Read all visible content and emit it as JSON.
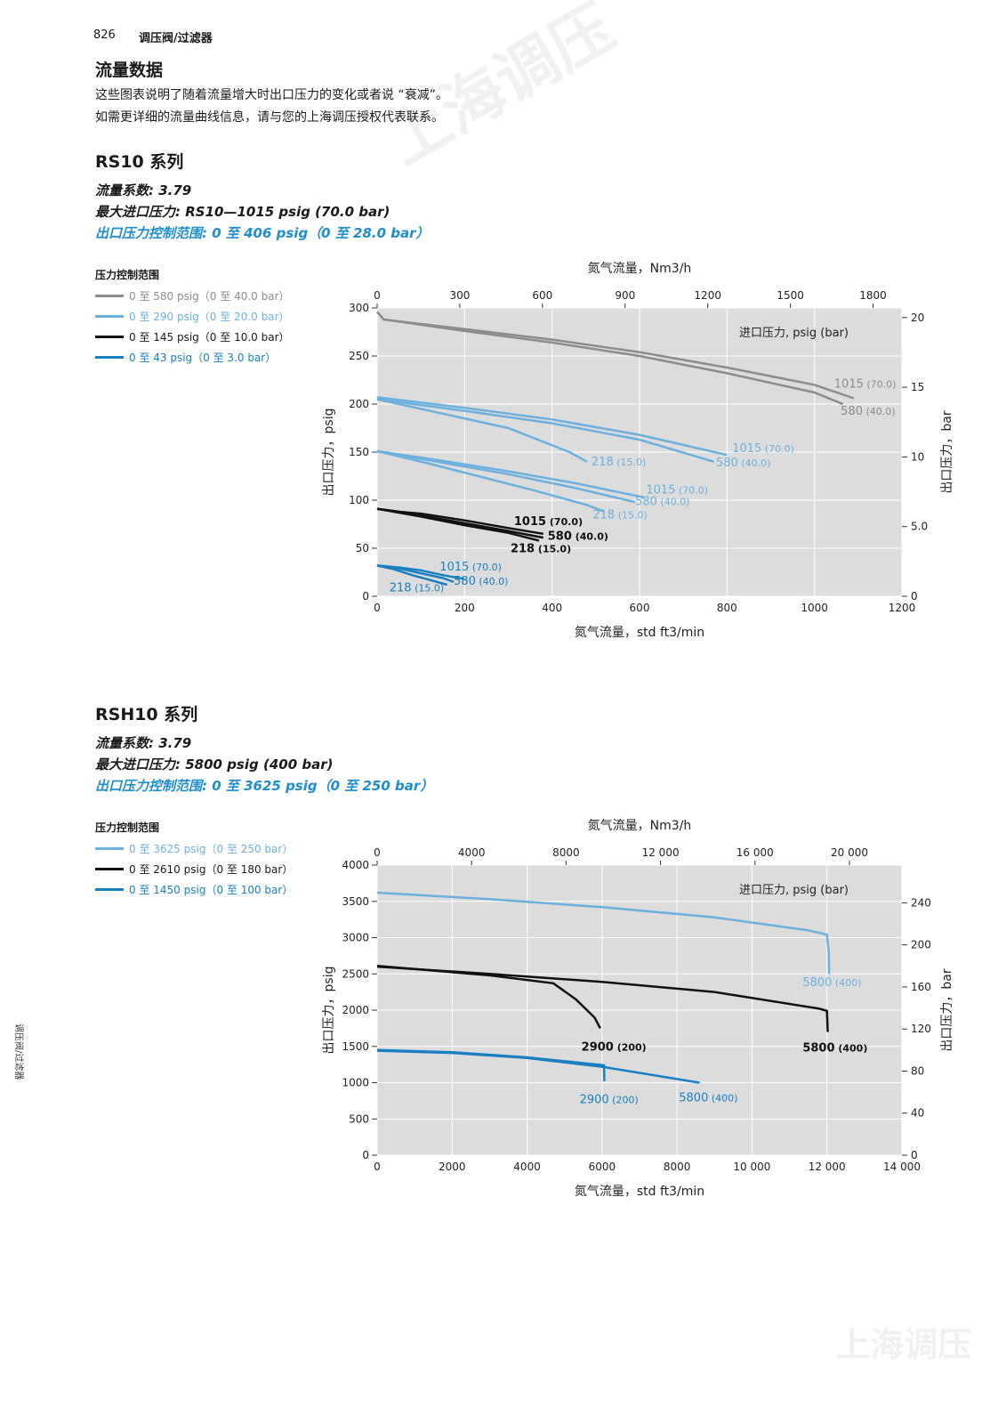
{
  "header": {
    "page_number": "826",
    "section": "调压阀/过滤器"
  },
  "intro": {
    "title": "流量数据",
    "line1": "这些图表说明了随着流量增大时出口压力的变化或者说 “衰减”。",
    "line2": "如需更详细的流量曲线信息，请与您的上海调压授权代表联系。"
  },
  "sidebar_text": "调压阀/过滤器",
  "watermark": "上海调压",
  "colors": {
    "gray": "#8c8c8c",
    "light_blue": "#6db0de",
    "black": "#111111",
    "blue": "#1a7fc1"
  },
  "rs10": {
    "title": "RS10 系列",
    "flow_coeff": "流量系数: 3.79",
    "max_inlet": "最大进口压力: RS10—1015 psig (70.0 bar)",
    "outlet_range": "出口压力控制范围: 0 至 406 psig（0 至 28.0 bar）",
    "legend_title": "压力控制范围",
    "legend": [
      {
        "label": "0 至 580 psig（0 至 40.0 bar）",
        "color": "#8c8c8c"
      },
      {
        "label": "0 至 290 psig（0 至 20.0 bar）",
        "color": "#6db0de"
      },
      {
        "label": "0 至 145 psig（0 至 10.0 bar）",
        "color": "#111111"
      },
      {
        "label": "0 至 43 psig（0 至 3.0 bar）",
        "color": "#1a7fc1"
      }
    ]
  },
  "rsh10": {
    "title": "RSH10 系列",
    "flow_coeff": "流量系数: 3.79",
    "max_inlet": "最大进口压力: 5800 psig (400 bar)",
    "outlet_range": "出口压力控制范围: 0 至 3625 psig（0 至 250 bar）",
    "legend_title": "压力控制范围",
    "legend": [
      {
        "label": "0 至 3625 psig（0 至 250 bar）",
        "color": "#6db0de"
      },
      {
        "label": "0 至 2610 psig（0 至 180 bar）",
        "color": "#111111"
      },
      {
        "label": "0 至 1450 psig（0 至 100 bar）",
        "color": "#1a7fc1"
      }
    ]
  },
  "chart_data": [
    {
      "type": "line",
      "title": "",
      "xlabel": "氮气流量，std ft3/min",
      "x2label": "氮气流量，Nm3/h",
      "ylabel": "出口压力，psig",
      "y2label": "出口压力，bar",
      "inlet_label": "进口压力, psig (bar)",
      "xlim": [
        0,
        1200
      ],
      "ylim": [
        0,
        300
      ],
      "x_ticks": [
        "0",
        "200",
        "400",
        "600",
        "800",
        "1000",
        "1200"
      ],
      "y_ticks": [
        "0",
        "50",
        "100",
        "150",
        "200",
        "250",
        "300"
      ],
      "x2_ticks": [
        {
          "label": "0",
          "x": 0
        },
        {
          "label": "300",
          "x": 189
        },
        {
          "label": "600",
          "x": 378
        },
        {
          "label": "900",
          "x": 567
        },
        {
          "label": "1200",
          "x": 756
        },
        {
          "label": "1500",
          "x": 945
        },
        {
          "label": "1800",
          "x": 1134
        }
      ],
      "y2_ticks": [
        {
          "label": "0",
          "y": 0
        },
        {
          "label": "5.0",
          "y": 72.5
        },
        {
          "label": "10",
          "y": 145
        },
        {
          "label": "15",
          "y": 217.5
        },
        {
          "label": "20",
          "y": 290
        }
      ],
      "grid": true,
      "series": [
        {
          "color": "#8c8c8c",
          "points": [
            [
              0,
              296
            ],
            [
              15,
              288
            ],
            [
              200,
              278
            ],
            [
              400,
              267
            ],
            [
              600,
              254
            ],
            [
              800,
              238
            ],
            [
              1000,
              220
            ],
            [
              1090,
              206
            ]
          ],
          "label": "1015",
          "label_sub": "(70.0)",
          "lx": 1045,
          "ly": 217
        },
        {
          "color": "#8c8c8c",
          "points": [
            [
              0,
              296
            ],
            [
              15,
              288
            ],
            [
              200,
              276
            ],
            [
              400,
              264
            ],
            [
              600,
              250
            ],
            [
              800,
              232
            ],
            [
              1000,
              212
            ],
            [
              1065,
              200
            ]
          ],
          "label": "580",
          "label_sub": "(40.0)",
          "lx": 1060,
          "ly": 189
        },
        {
          "color": "#6db0de",
          "points": [
            [
              0,
              207
            ],
            [
              200,
              196
            ],
            [
              400,
              184
            ],
            [
              600,
              168
            ],
            [
              800,
              147
            ]
          ],
          "label": "1015",
          "label_sub": "(70.0)",
          "lx": 812,
          "ly": 150
        },
        {
          "color": "#6db0de",
          "points": [
            [
              0,
              205
            ],
            [
              200,
              193
            ],
            [
              400,
              180
            ],
            [
              600,
              163
            ],
            [
              770,
              140
            ]
          ],
          "label": "580",
          "label_sub": "(40.0)",
          "lx": 775,
          "ly": 135
        },
        {
          "color": "#6db0de",
          "points": [
            [
              0,
              205
            ],
            [
              150,
              190
            ],
            [
              300,
              175
            ],
            [
              440,
              150
            ],
            [
              480,
              140
            ]
          ],
          "label": "218",
          "label_sub": "(15.0)",
          "lx": 490,
          "ly": 136
        },
        {
          "color": "#6db0de",
          "points": [
            [
              0,
              151
            ],
            [
              150,
              141
            ],
            [
              300,
              130
            ],
            [
              450,
              118
            ],
            [
              610,
              103
            ]
          ],
          "label": "1015",
          "label_sub": "(70.0)",
          "lx": 615,
          "ly": 107
        },
        {
          "color": "#6db0de",
          "points": [
            [
              0,
              151
            ],
            [
              150,
              139
            ],
            [
              300,
              127
            ],
            [
              450,
              113
            ],
            [
              590,
              98
            ]
          ],
          "label": "580",
          "label_sub": "(40.0)",
          "lx": 590,
          "ly": 95
        },
        {
          "color": "#6db0de",
          "points": [
            [
              0,
              151
            ],
            [
              120,
              138
            ],
            [
              240,
              124
            ],
            [
              360,
              110
            ],
            [
              480,
              95
            ],
            [
              520,
              88
            ]
          ],
          "label": "218",
          "label_sub": "(15.0)",
          "lx": 493,
          "ly": 81
        },
        {
          "color": "#111111",
          "points": [
            [
              0,
              91
            ],
            [
              50,
              88
            ],
            [
              100,
              86
            ],
            [
              200,
              79
            ],
            [
              300,
              71
            ],
            [
              380,
              65
            ]
          ],
          "label": "1015",
          "label_sub": "(70.0)",
          "lx": 313,
          "ly": 74
        },
        {
          "color": "#111111",
          "points": [
            [
              0,
              91
            ],
            [
              50,
              88
            ],
            [
              100,
              84
            ],
            [
              200,
              76
            ],
            [
              300,
              68
            ],
            [
              380,
              61
            ]
          ],
          "label": "580",
          "label_sub": "(40.0)",
          "lx": 390,
          "ly": 59
        },
        {
          "color": "#111111",
          "points": [
            [
              0,
              91
            ],
            [
              50,
              87
            ],
            [
              100,
              83
            ],
            [
              200,
              74
            ],
            [
              300,
              66
            ],
            [
              370,
              58
            ]
          ],
          "label": "218",
          "label_sub": "(15.0)",
          "lx": 305,
          "ly": 46
        },
        {
          "color": "#1a7fc1",
          "points": [
            [
              0,
              32
            ],
            [
              50,
              30
            ],
            [
              100,
              27
            ],
            [
              150,
              22
            ],
            [
              200,
              18
            ]
          ],
          "label": "1015",
          "label_sub": "(70.0)",
          "lx": 143,
          "ly": 27
        },
        {
          "color": "#1a7fc1",
          "points": [
            [
              0,
              32
            ],
            [
              50,
              29
            ],
            [
              100,
              24
            ],
            [
              150,
              19
            ],
            [
              175,
              15
            ]
          ],
          "label": "580",
          "label_sub": "(40.0)",
          "lx": 175,
          "ly": 12
        },
        {
          "color": "#1a7fc1",
          "points": [
            [
              0,
              32
            ],
            [
              40,
              28
            ],
            [
              80,
              22
            ],
            [
              120,
              17
            ],
            [
              160,
              12
            ]
          ],
          "label": "218",
          "label_sub": "(15.0)",
          "lx": 28,
          "ly": 5
        }
      ]
    },
    {
      "type": "line",
      "title": "",
      "xlabel": "氮气流量，std ft3/min",
      "x2label": "氮气流量，Nm3/h",
      "ylabel": "出口压力，psig",
      "y2label": "出口压力，bar",
      "inlet_label": "进口压力, psig (bar)",
      "xlim": [
        0,
        14000
      ],
      "ylim": [
        0,
        4000
      ],
      "x_ticks": [
        "0",
        "2000",
        "4000",
        "6000",
        "8000",
        "10 000",
        "12 000",
        "14 000"
      ],
      "y_ticks": [
        "0",
        "500",
        "1000",
        "1500",
        "2000",
        "2500",
        "3000",
        "3500",
        "4000"
      ],
      "x2_ticks": [
        {
          "label": "0",
          "x": 0
        },
        {
          "label": "4000",
          "x": 2520
        },
        {
          "label": "8000",
          "x": 5040
        },
        {
          "label": "12 000",
          "x": 7560
        },
        {
          "label": "16 000",
          "x": 10080
        },
        {
          "label": "20 000",
          "x": 12600
        }
      ],
      "y2_ticks": [
        {
          "label": "0",
          "y": 0
        },
        {
          "label": "40",
          "y": 580
        },
        {
          "label": "80",
          "y": 1160
        },
        {
          "label": "120",
          "y": 1740
        },
        {
          "label": "160",
          "y": 2320
        },
        {
          "label": "200",
          "y": 2900
        },
        {
          "label": "240",
          "y": 3480
        }
      ],
      "grid": true,
      "series": [
        {
          "color": "#6db0de",
          "points": [
            [
              0,
              3620
            ],
            [
              3000,
              3530
            ],
            [
              6000,
              3420
            ],
            [
              9000,
              3280
            ],
            [
              11500,
              3100
            ],
            [
              12000,
              3040
            ],
            [
              12050,
              2800
            ],
            [
              12060,
              2500
            ]
          ],
          "label": "5800",
          "label_sub": "(400)",
          "lx": 11350,
          "ly": 2330
        },
        {
          "color": "#111111",
          "points": [
            [
              0,
              2610
            ],
            [
              3000,
              2480
            ],
            [
              4700,
              2370
            ],
            [
              5300,
              2150
            ],
            [
              5800,
              1900
            ],
            [
              5950,
              1750
            ]
          ],
          "label": "2900",
          "label_sub": "(200)",
          "lx": 5450,
          "ly": 1440
        },
        {
          "color": "#111111",
          "points": [
            [
              0,
              2600
            ],
            [
              3000,
              2500
            ],
            [
              6000,
              2390
            ],
            [
              9000,
              2250
            ],
            [
              11800,
              2020
            ],
            [
              12000,
              1990
            ],
            [
              12020,
              1700
            ]
          ],
          "label": "5800",
          "label_sub": "(400)",
          "lx": 11350,
          "ly": 1430
        },
        {
          "color": "#1a7fc1",
          "points": [
            [
              0,
              1450
            ],
            [
              2000,
              1420
            ],
            [
              4000,
              1350
            ],
            [
              5500,
              1270
            ],
            [
              6050,
              1240
            ],
            [
              6060,
              1020
            ]
          ],
          "label": "2900",
          "label_sub": "(200)",
          "lx": 5400,
          "ly": 720
        },
        {
          "color": "#1a7fc1",
          "points": [
            [
              0,
              1440
            ],
            [
              2000,
              1410
            ],
            [
              4000,
              1340
            ],
            [
              6000,
              1220
            ],
            [
              8000,
              1050
            ],
            [
              8600,
              1000
            ]
          ],
          "label": "5800",
          "label_sub": "(400)",
          "lx": 8050,
          "ly": 740
        }
      ]
    }
  ]
}
